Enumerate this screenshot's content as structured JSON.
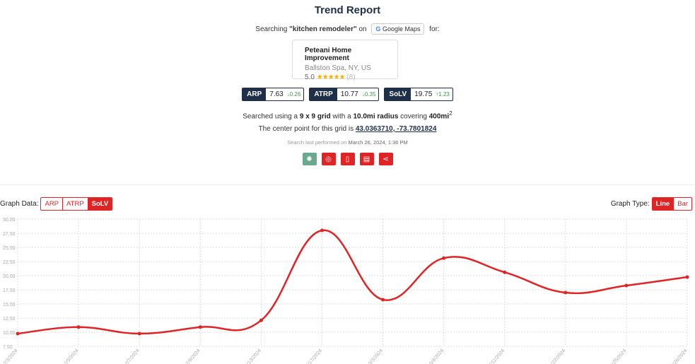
{
  "header": {
    "title": "Trend Report",
    "searching_prefix": "Searching ",
    "keyword": "\"kitchen remodeler\"",
    "on": " on ",
    "platform": "Google Maps",
    "for": " for:"
  },
  "business": {
    "name": "Peteani Home Improvement",
    "location": "Ballston Spa, NY, US",
    "rating": "5.0",
    "stars": "★★★★★",
    "reviews": "(8)"
  },
  "metrics": [
    {
      "label": "ARP",
      "value": "7.63",
      "delta": "↓0.26",
      "direction": "down"
    },
    {
      "label": "ATRP",
      "value": "10.77",
      "delta": "↓0.35",
      "direction": "down"
    },
    {
      "label": "SoLV",
      "value": "19.75",
      "delta": "↑1.23",
      "direction": "up"
    }
  ],
  "grid_info": {
    "p1": "Searched using a ",
    "grid": "9 x 9 grid",
    "p2": " with a ",
    "radius": "10.0mi radius",
    "p3": " covering ",
    "area": "400mi",
    "sup": "2"
  },
  "center": {
    "text": "The center point for this grid is ",
    "coords": "43.0363710, -73.7801824"
  },
  "last_search": {
    "text": "Search last performed on ",
    "date": "March 26, 2024, 1:36 PM"
  },
  "actions": [
    {
      "icon": "openai-icon",
      "color": "#6aa890"
    },
    {
      "icon": "target-icon",
      "color": "#e02426"
    },
    {
      "icon": "pdf-icon",
      "color": "#e02426"
    },
    {
      "icon": "file-icon",
      "color": "#e02426"
    },
    {
      "icon": "share-icon",
      "color": "#e02426"
    }
  ],
  "graph_data": {
    "label": "Graph Data:",
    "options": [
      "ARP",
      "ATRP",
      "SoLV"
    ],
    "selected": "SoLV"
  },
  "graph_type": {
    "label": "Graph Type:",
    "options": [
      "Line",
      "Bar"
    ],
    "selected": "Line"
  },
  "colors": {
    "accent": "#e02426",
    "navy": "#1e2f4a",
    "up": "#3a9a4a"
  },
  "chart_data": {
    "type": "line",
    "categories": [
      "2/3/2024",
      "2/5/2024",
      "2/7/2024",
      "2/9/2024",
      "2/13/2024",
      "2/17/2024",
      "3/3/2024",
      "3/4/2024",
      "3/11/2024",
      "3/22/2024",
      "3/25/2024",
      "3/26/2024"
    ],
    "series": [
      {
        "values": [
          9.75,
          10.9,
          9.75,
          10.9,
          12.1,
          28.0,
          15.75,
          23.1,
          20.6,
          17.0,
          18.25,
          19.75
        ],
        "color": "#e02426"
      }
    ],
    "yticks": [
      "7.50",
      "10.00",
      "12.50",
      "15.00",
      "17.50",
      "20.00",
      "22.50",
      "25.00",
      "27.50",
      "30.00"
    ],
    "ylim": [
      7.5,
      30
    ],
    "grid": true,
    "smooth": true
  }
}
